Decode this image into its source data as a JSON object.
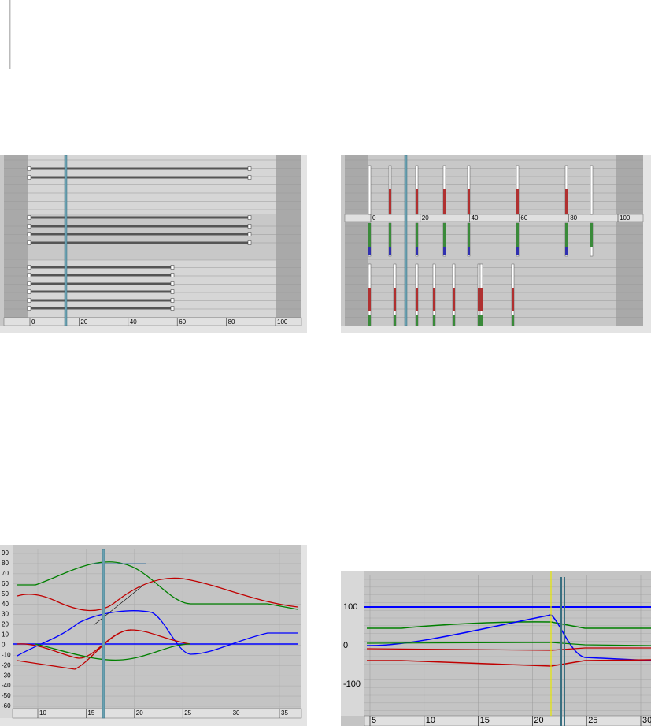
{
  "dope_sheet_ruler": [
    0,
    20,
    40,
    60,
    80,
    100
  ],
  "key_sheet_ruler": [
    0,
    20,
    40,
    60,
    80,
    100
  ],
  "curve_editor": {
    "y_labels": [
      90,
      80,
      70,
      60,
      50,
      40,
      30,
      20,
      10,
      0,
      -10,
      -20,
      -30,
      -40,
      -50,
      -60
    ],
    "x_labels": [
      10,
      15,
      20,
      25,
      30,
      35
    ]
  },
  "curve_editor_zoomed": {
    "y_labels": [
      100,
      0,
      -100
    ],
    "x_labels": [
      5,
      10,
      15,
      20,
      25,
      30
    ]
  }
}
